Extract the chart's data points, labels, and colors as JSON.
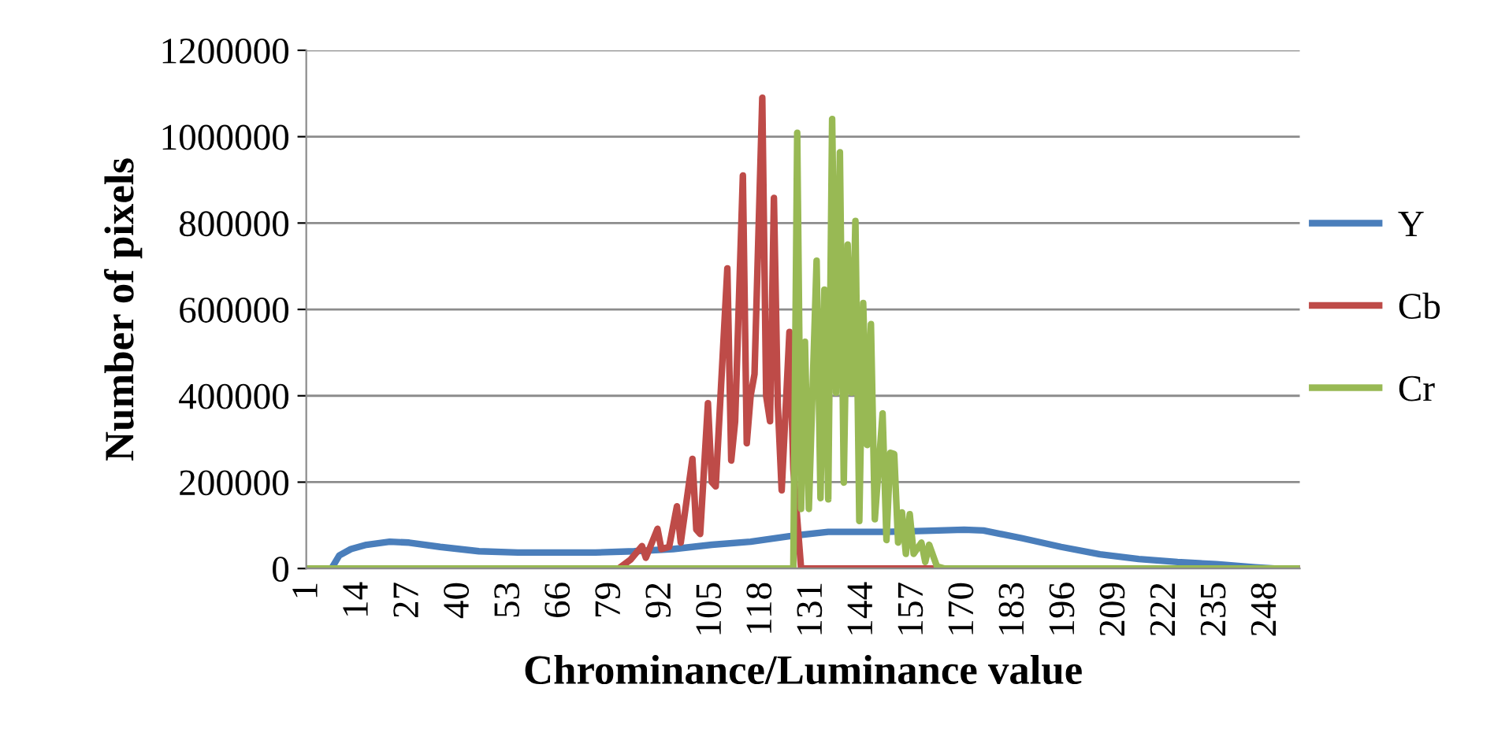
{
  "chart_data": {
    "type": "line",
    "xlabel": "Chrominance/Luminance value",
    "ylabel": "Number of pixels",
    "xlim": [
      0.5,
      256.5
    ],
    "xticks": [
      1,
      14,
      27,
      40,
      53,
      66,
      79,
      92,
      105,
      118,
      131,
      144,
      157,
      170,
      183,
      196,
      209,
      222,
      235,
      248
    ],
    "ylim": [
      0,
      1200000
    ],
    "yticks": [
      0,
      200000,
      400000,
      600000,
      800000,
      1000000,
      1200000
    ],
    "grid": "y",
    "legend": "right",
    "marker": "none",
    "line_style": "solid",
    "series": [
      {
        "name": "Y",
        "color": "#4a7ebb",
        "x": [
          1,
          7,
          9,
          12,
          16,
          22,
          27,
          35,
          45,
          55,
          75,
          85,
          95,
          105,
          115,
          125,
          135,
          150,
          160,
          170,
          175,
          185,
          195,
          205,
          215,
          225,
          235,
          245,
          250,
          256
        ],
        "values": [
          0,
          0,
          30000,
          45000,
          55000,
          62000,
          60000,
          50000,
          40000,
          37000,
          37000,
          40000,
          45000,
          55000,
          62000,
          75000,
          85000,
          85000,
          87000,
          90000,
          88000,
          70000,
          50000,
          33000,
          22000,
          15000,
          10000,
          3000,
          0,
          0
        ]
      },
      {
        "name": "Cb",
        "color": "#be4b48",
        "x": [
          1,
          81,
          84,
          87,
          88,
          91,
          92,
          94,
          96,
          97,
          100,
          101,
          102,
          104,
          105,
          106,
          109,
          110,
          111,
          113,
          114,
          115,
          116,
          118,
          119,
          120,
          121,
          122,
          123,
          125,
          126,
          128,
          256
        ],
        "values": [
          0,
          0,
          20000,
          52000,
          25000,
          92000,
          45000,
          50000,
          144000,
          60000,
          254000,
          90000,
          80000,
          383000,
          200000,
          190000,
          695000,
          250000,
          340000,
          910000,
          290000,
          400000,
          450000,
          1090000,
          400000,
          341000,
          858000,
          380000,
          181000,
          548000,
          230000,
          0,
          0
        ]
      },
      {
        "name": "Cr",
        "color": "#98b954",
        "x": [
          1,
          126,
          127,
          128,
          129,
          130,
          132,
          133,
          134,
          135,
          136,
          137,
          138,
          139,
          140,
          141,
          142,
          143,
          144,
          145,
          146,
          147,
          149,
          150,
          151,
          152,
          153,
          154,
          155,
          156,
          157,
          159,
          160,
          161,
          163,
          165,
          256
        ],
        "values": [
          0,
          0,
          1009000,
          138000,
          525000,
          138000,
          713000,
          163000,
          646000,
          160000,
          1041000,
          407000,
          964000,
          199000,
          750000,
          407000,
          805000,
          110000,
          615000,
          286000,
          566000,
          114000,
          359000,
          66000,
          268000,
          265000,
          60000,
          130000,
          34000,
          126000,
          34000,
          60000,
          15000,
          55000,
          5000,
          0,
          0
        ]
      }
    ]
  }
}
